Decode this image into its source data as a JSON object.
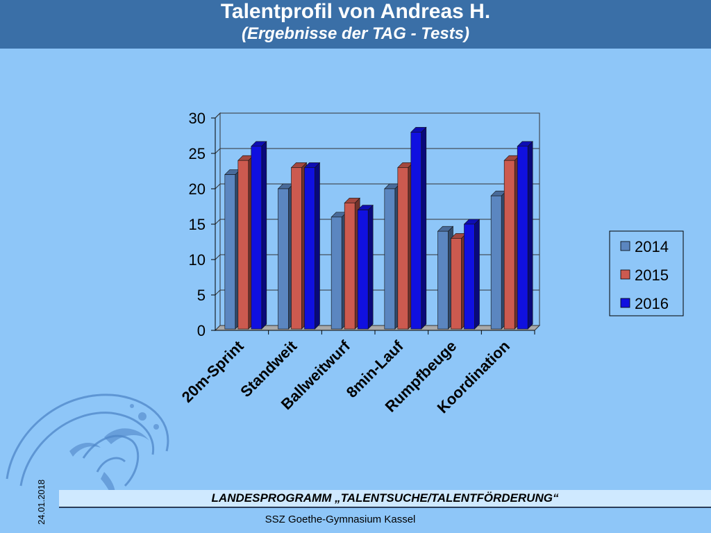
{
  "header": {
    "title": "Talentprofil von Andreas H.",
    "subtitle": "(Ergebnisse der TAG - Tests)"
  },
  "footer": {
    "program": "LANDESPROGRAMM „TALENTSUCHE/TALENTFÖRDERUNG“",
    "school": "SSZ Goethe-Gymnasium Kassel",
    "date": "24.01.2018"
  },
  "colors": {
    "background": "#8ec6f8",
    "header": "#3a6fa7",
    "series": [
      "#5b86c0",
      "#cc5a4f",
      "#1010e0"
    ]
  },
  "chart_data": {
    "type": "bar",
    "title": "",
    "xlabel": "",
    "ylabel": "",
    "categories": [
      "20m-Sprint",
      "Standweit",
      "Ballweitwurf",
      "8min-Lauf",
      "Rumpfbeuge",
      "Koordination"
    ],
    "series": [
      {
        "name": "2014",
        "values": [
          22,
          20,
          16,
          20,
          14,
          19
        ]
      },
      {
        "name": "2015",
        "values": [
          24,
          23,
          18,
          23,
          13,
          24
        ]
      },
      {
        "name": "2016",
        "values": [
          26,
          23,
          17,
          28,
          15,
          26
        ]
      }
    ],
    "ylim": [
      0,
      30
    ],
    "yticks": [
      "0",
      "5",
      "10",
      "15",
      "20",
      "25",
      "30"
    ],
    "grid": true,
    "legend": "right",
    "style": "3d-column"
  }
}
